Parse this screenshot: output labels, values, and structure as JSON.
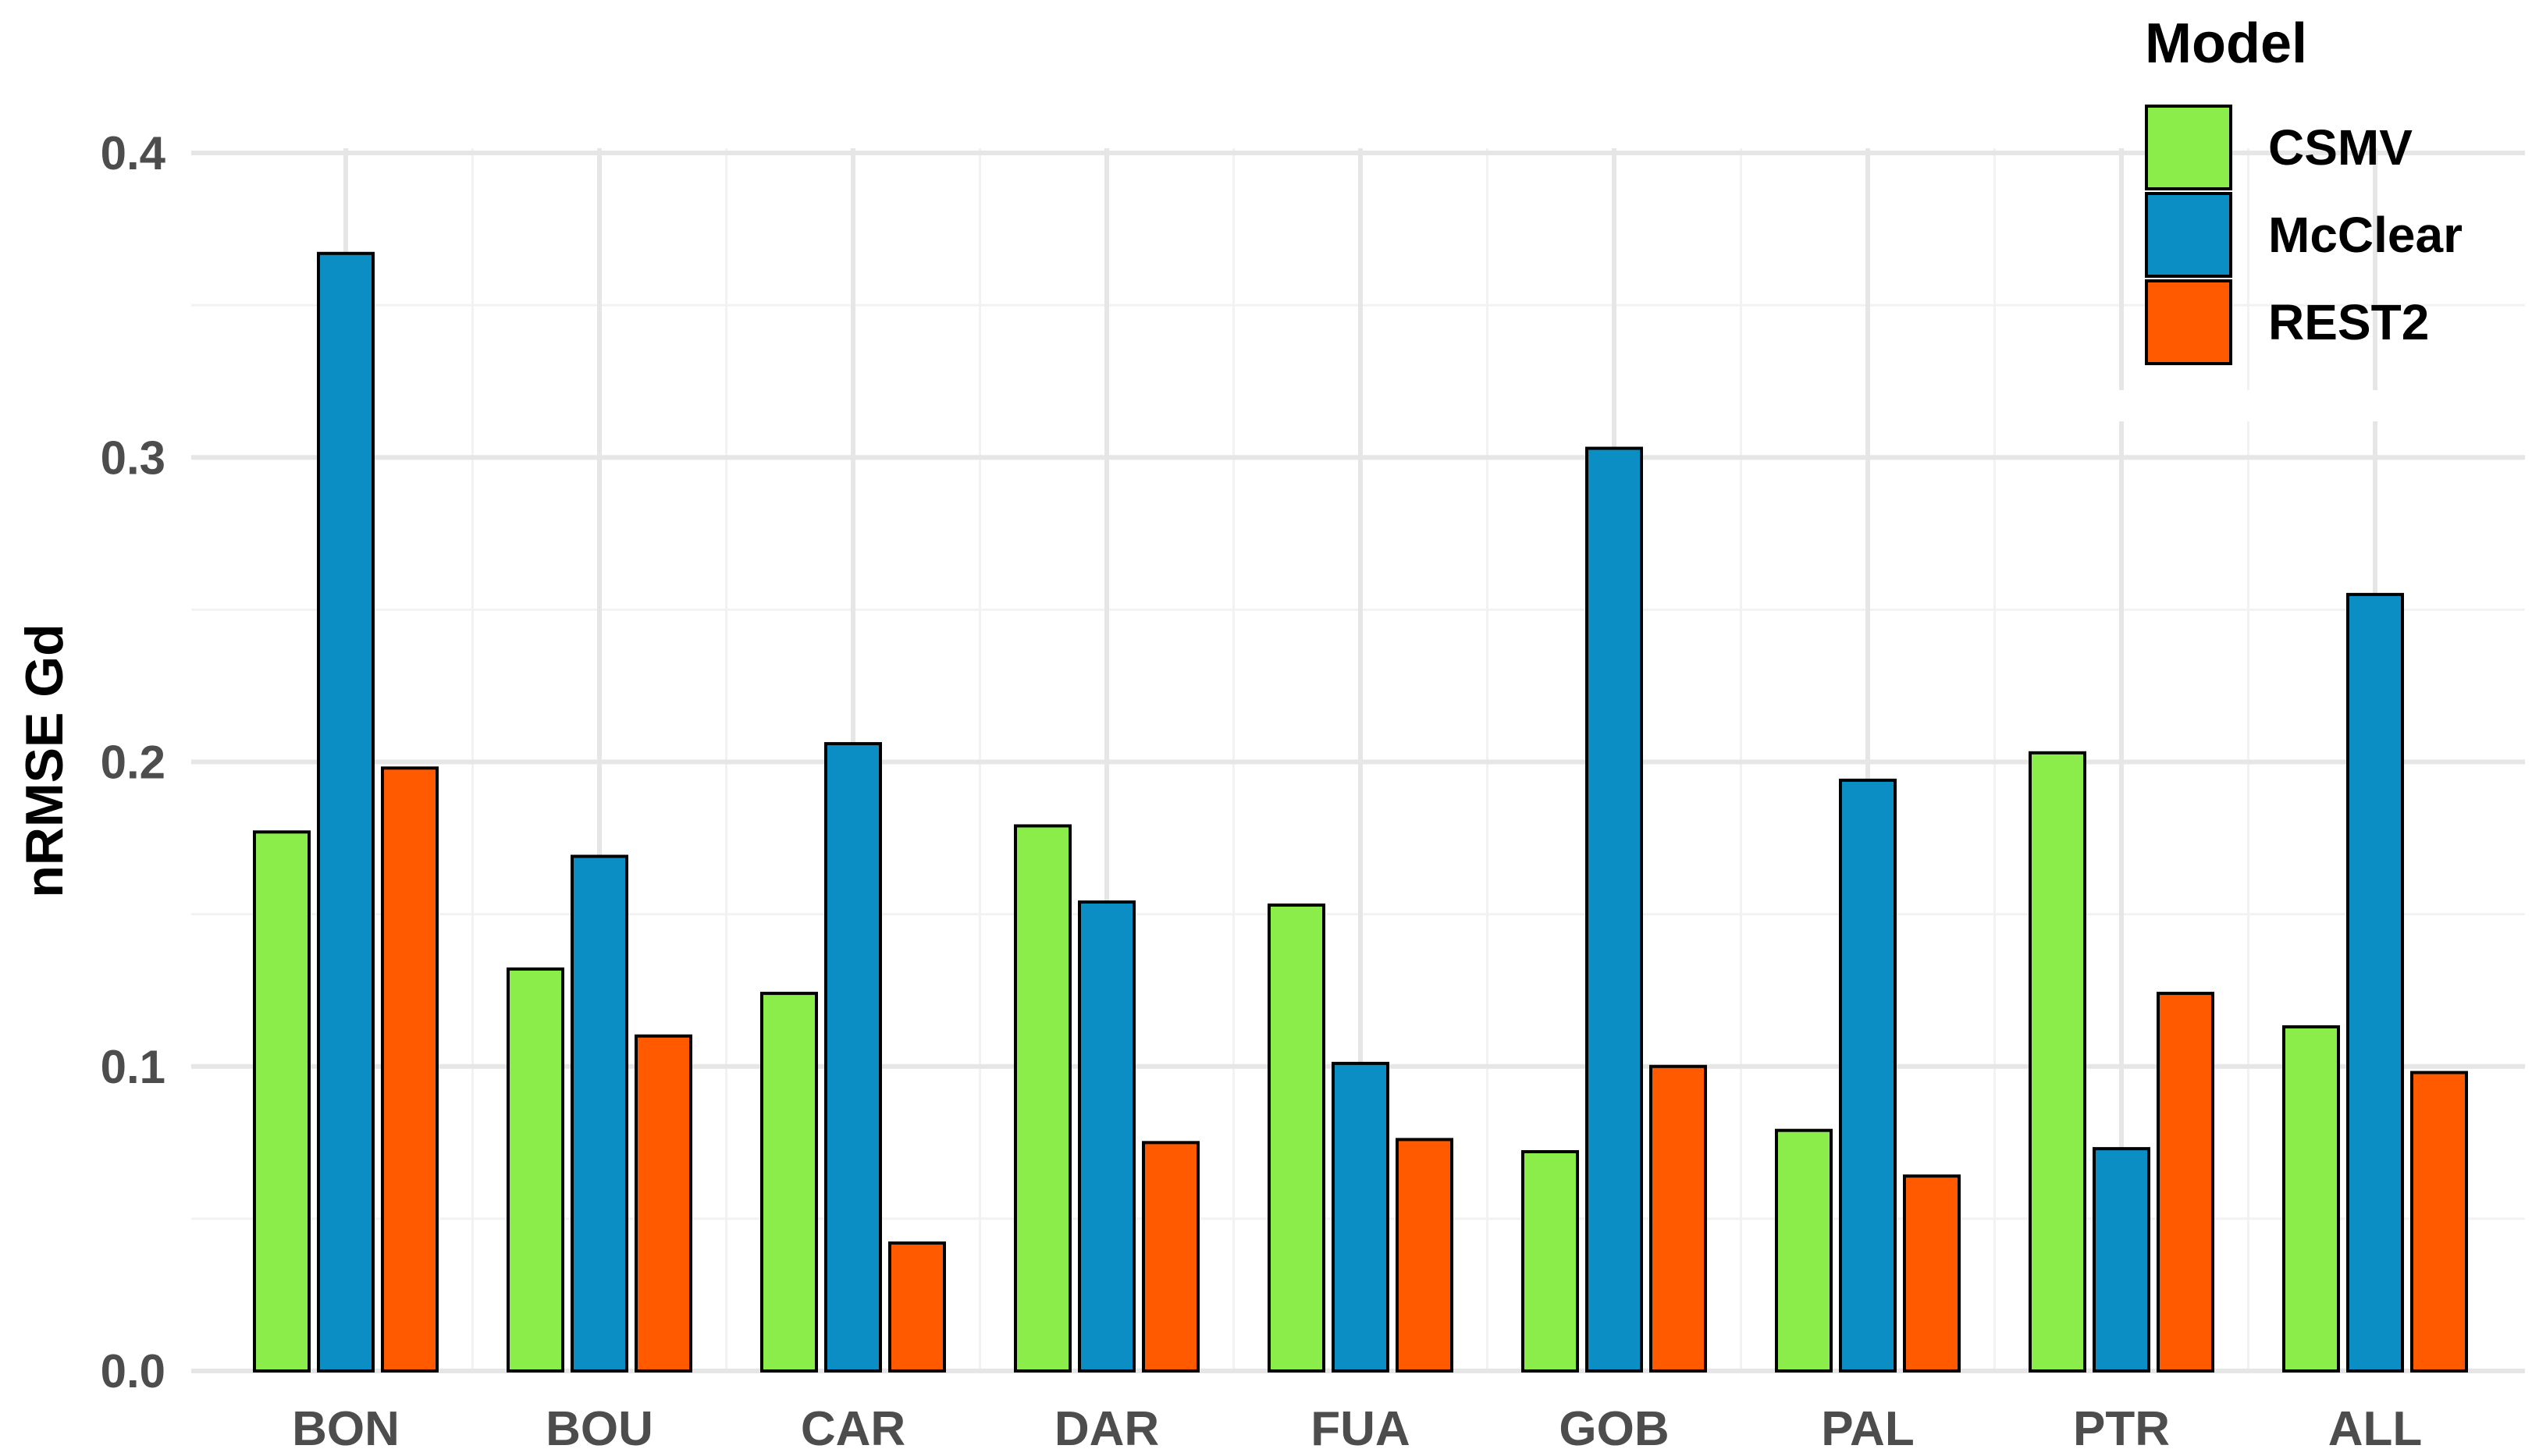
{
  "chart_data": {
    "type": "bar",
    "title": "",
    "xlabel": "",
    "ylabel": "nRMSE Gd",
    "ylim": [
      0,
      0.4
    ],
    "yticks": [
      "0.0",
      "0.1",
      "0.2",
      "0.3",
      "0.4"
    ],
    "grid": true,
    "legend": {
      "title": "Model",
      "position": "top-right"
    },
    "categories": [
      "BON",
      "BOU",
      "CAR",
      "DAR",
      "FUA",
      "GOB",
      "PAL",
      "PTR",
      "ALL"
    ],
    "series": [
      {
        "name": "CSMV",
        "color": "#8aed4a",
        "values": [
          0.177,
          0.132,
          0.124,
          0.179,
          0.153,
          0.072,
          0.079,
          0.203,
          0.113
        ]
      },
      {
        "name": "McClear",
        "color": "#0a8ec4",
        "values": [
          0.367,
          0.169,
          0.206,
          0.154,
          0.101,
          0.303,
          0.194,
          0.073,
          0.255
        ]
      },
      {
        "name": "REST2",
        "color": "#ff5a00",
        "values": [
          0.198,
          0.11,
          0.042,
          0.075,
          0.076,
          0.1,
          0.064,
          0.124,
          0.098
        ]
      }
    ]
  }
}
